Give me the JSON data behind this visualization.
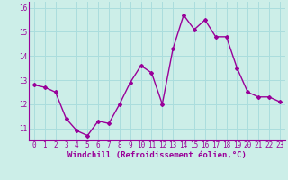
{
  "x": [
    0,
    1,
    2,
    3,
    4,
    5,
    6,
    7,
    8,
    9,
    10,
    11,
    12,
    13,
    14,
    15,
    16,
    17,
    18,
    19,
    20,
    21,
    22,
    23
  ],
  "y": [
    12.8,
    12.7,
    12.5,
    11.4,
    10.9,
    10.7,
    11.3,
    11.2,
    12.0,
    12.9,
    13.6,
    13.3,
    12.0,
    14.3,
    15.7,
    15.1,
    15.5,
    14.8,
    14.8,
    13.5,
    12.5,
    12.3,
    12.3,
    12.1
  ],
  "line_color": "#990099",
  "marker": "D",
  "marker_size": 2,
  "line_width": 1.0,
  "xlabel": "Windchill (Refroidissement éolien,°C)",
  "xlabel_fontsize": 6.5,
  "ylim": [
    10.5,
    16.25
  ],
  "xlim": [
    -0.5,
    23.5
  ],
  "yticks": [
    11,
    12,
    13,
    14,
    15,
    16
  ],
  "xticks": [
    0,
    1,
    2,
    3,
    4,
    5,
    6,
    7,
    8,
    9,
    10,
    11,
    12,
    13,
    14,
    15,
    16,
    17,
    18,
    19,
    20,
    21,
    22,
    23
  ],
  "grid_color": "#aadddd",
  "bg_color": "#cceee8",
  "tick_fontsize": 5.5,
  "fig_bg": "#cceee8"
}
